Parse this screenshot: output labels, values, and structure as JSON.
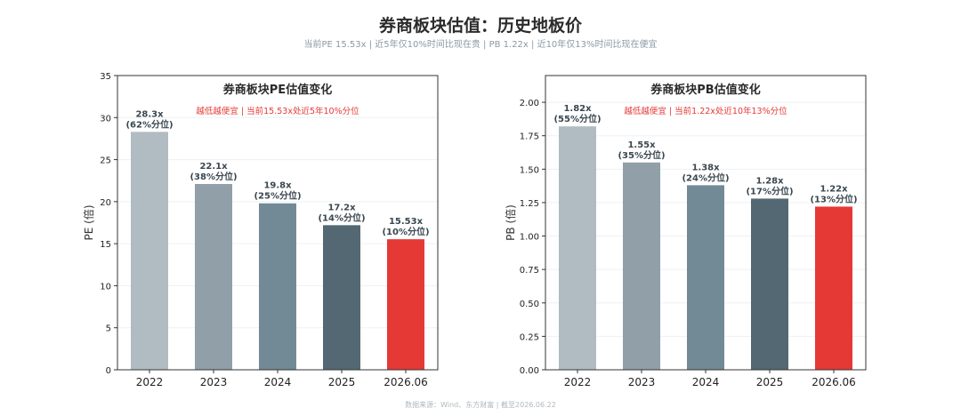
{
  "header": {
    "title": "券商板块估值：历史地板价",
    "subtitle": "当前PE 15.53x | 近5年仅10%时间比现在贵 | PB 1.22x | 近10年仅13%时间比现在便宜"
  },
  "footer": {
    "source": "数据来源：Wind、东方财富 | 截至2026.06.22"
  },
  "colors": {
    "bars": [
      "#b0bcc2",
      "#909fa8",
      "#728a96",
      "#536872",
      "#e53935"
    ],
    "annotation": "#e53935",
    "label": "#3a4750"
  },
  "chart_data": [
    {
      "type": "bar",
      "title": "券商板块PE估值变化",
      "annotation": "越低越便宜 | 当前15.53x处近5年10%分位",
      "ylabel": "PE (倍)",
      "xlabel": "",
      "categories": [
        "2022",
        "2023",
        "2024",
        "2025",
        "2026.06"
      ],
      "values": [
        28.3,
        22.1,
        19.8,
        17.2,
        15.53
      ],
      "value_labels": [
        "28.3x",
        "22.1x",
        "19.8x",
        "17.2x",
        "15.53x"
      ],
      "percentile_labels": [
        "(62%分位)",
        "(38%分位)",
        "(25%分位)",
        "(14%分位)",
        "(10%分位)"
      ],
      "ylim": [
        0,
        35
      ],
      "yticks": [
        "0",
        "5",
        "10",
        "15",
        "20",
        "25",
        "30",
        "35"
      ],
      "grid": true
    },
    {
      "type": "bar",
      "title": "券商板块PB估值变化",
      "annotation": "越低越便宜 | 当前1.22x处近10年13%分位",
      "ylabel": "PB (倍)",
      "xlabel": "",
      "categories": [
        "2022",
        "2023",
        "2024",
        "2025",
        "2026.06"
      ],
      "values": [
        1.82,
        1.55,
        1.38,
        1.28,
        1.22
      ],
      "value_labels": [
        "1.82x",
        "1.55x",
        "1.38x",
        "1.28x",
        "1.22x"
      ],
      "percentile_labels": [
        "(55%分位)",
        "(35%分位)",
        "(24%分位)",
        "(17%分位)",
        "(13%分位)"
      ],
      "ylim": [
        0,
        2.2
      ],
      "yticks": [
        "0.00",
        "0.25",
        "0.50",
        "0.75",
        "1.00",
        "1.25",
        "1.50",
        "1.75",
        "2.00"
      ],
      "grid": true
    }
  ]
}
